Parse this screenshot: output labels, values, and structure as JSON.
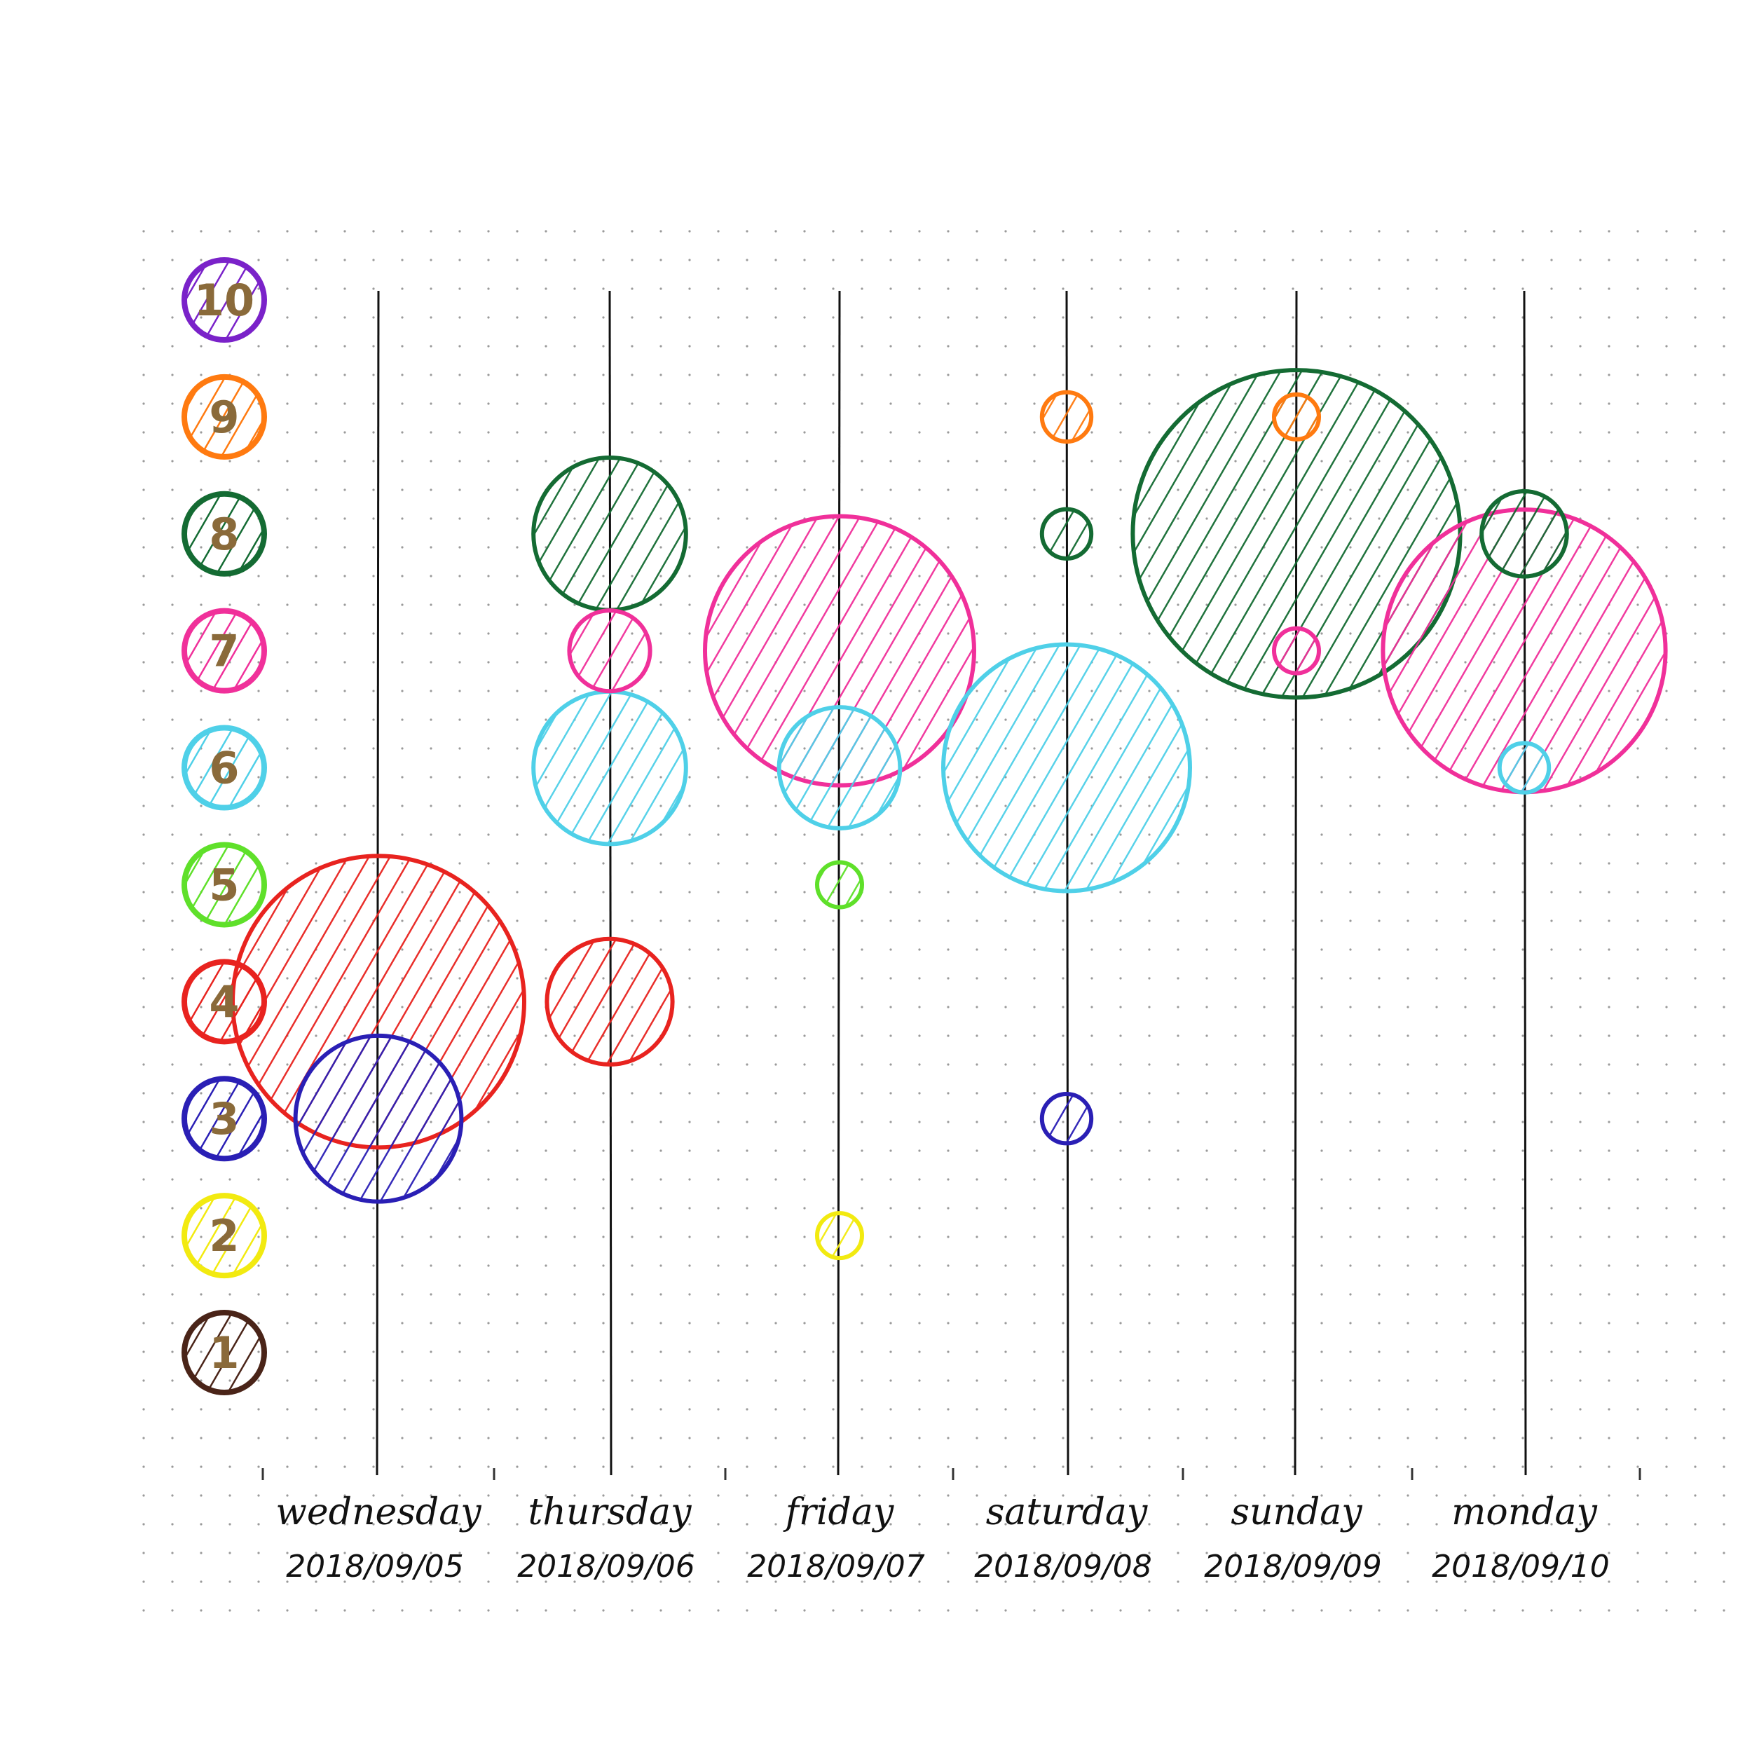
{
  "chart_data": {
    "type": "scatter",
    "title": "",
    "xlabel": "",
    "ylabel": "",
    "grid": "dot-grid",
    "legend": {
      "placement": "left",
      "items": [
        {
          "label": "10",
          "color": "#7a22c9"
        },
        {
          "label": "9",
          "color": "#ff7a10"
        },
        {
          "label": "8",
          "color": "#146b33"
        },
        {
          "label": "7",
          "color": "#f0309a"
        },
        {
          "label": "6",
          "color": "#4fd0e8"
        },
        {
          "label": "5",
          "color": "#5fe02a"
        },
        {
          "label": "4",
          "color": "#e8231f"
        },
        {
          "label": "3",
          "color": "#2a1fb5"
        },
        {
          "label": "2",
          "color": "#f2ea10"
        },
        {
          "label": "1",
          "color": "#4a2418"
        }
      ]
    },
    "categories": [
      {
        "day": "wednesday",
        "date": "2018/09/05"
      },
      {
        "day": "thursday",
        "date": "2018/09/06"
      },
      {
        "day": "friday",
        "date": "2018/09/07"
      },
      {
        "day": "saturday",
        "date": "2018/09/08"
      },
      {
        "day": "sunday",
        "date": "2018/09/09"
      },
      {
        "day": "monday",
        "date": "2018/09/10"
      }
    ],
    "ylim": [
      1,
      10
    ],
    "bubbles": [
      {
        "day": 0,
        "y": 4,
        "size": 6.5,
        "series": "4"
      },
      {
        "day": 0,
        "y": 3,
        "size": 3.7,
        "series": "3"
      },
      {
        "day": 1,
        "y": 8,
        "size": 3.4,
        "series": "8"
      },
      {
        "day": 1,
        "y": 7,
        "size": 1.8,
        "series": "7"
      },
      {
        "day": 1,
        "y": 6,
        "size": 3.4,
        "series": "6"
      },
      {
        "day": 1,
        "y": 4,
        "size": 2.8,
        "series": "4"
      },
      {
        "day": 2,
        "y": 7,
        "size": 6.0,
        "series": "7"
      },
      {
        "day": 2,
        "y": 6,
        "size": 2.7,
        "series": "6"
      },
      {
        "day": 2,
        "y": 5,
        "size": 1.0,
        "series": "5"
      },
      {
        "day": 2,
        "y": 2,
        "size": 1.0,
        "series": "2"
      },
      {
        "day": 3,
        "y": 9,
        "size": 1.1,
        "series": "9"
      },
      {
        "day": 3,
        "y": 8,
        "size": 1.1,
        "series": "8"
      },
      {
        "day": 3,
        "y": 6,
        "size": 5.5,
        "series": "6"
      },
      {
        "day": 3,
        "y": 3,
        "size": 1.1,
        "series": "3"
      },
      {
        "day": 4,
        "y": 8,
        "size": 7.3,
        "series": "8"
      },
      {
        "day": 4,
        "y": 9,
        "size": 1.0,
        "series": "9"
      },
      {
        "day": 4,
        "y": 7,
        "size": 1.0,
        "series": "7"
      },
      {
        "day": 5,
        "y": 7,
        "size": 6.3,
        "series": "7"
      },
      {
        "day": 5,
        "y": 8,
        "size": 1.9,
        "series": "8"
      },
      {
        "day": 5,
        "y": 6,
        "size": 1.1,
        "series": "6"
      }
    ]
  }
}
